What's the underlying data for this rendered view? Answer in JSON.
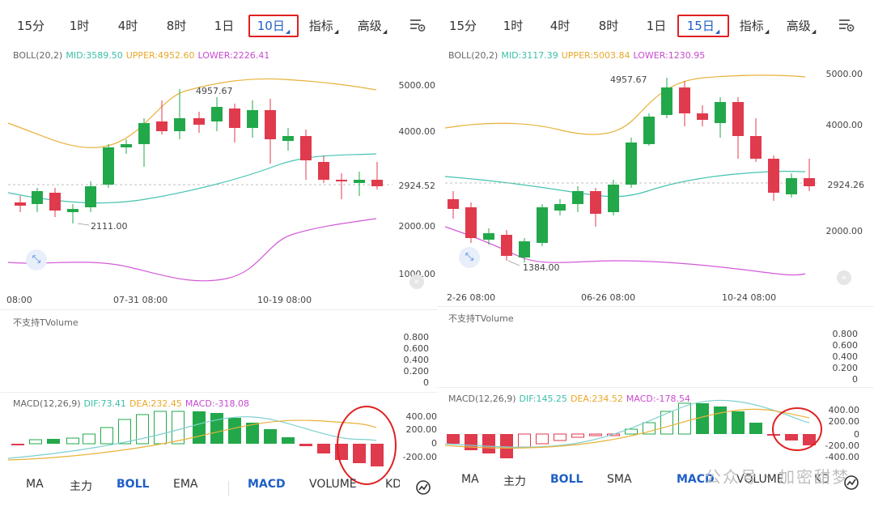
{
  "left": {
    "tabs": [
      {
        "label": "15分",
        "active": false
      },
      {
        "label": "1时",
        "active": false
      },
      {
        "label": "4时",
        "active": false
      },
      {
        "label": "8时",
        "active": false
      },
      {
        "label": "1日",
        "active": false
      },
      {
        "label": "10日",
        "active": true
      },
      {
        "label": "指标",
        "active": false,
        "dropdown": true
      },
      {
        "label": "高级",
        "active": false,
        "dropdown": true
      }
    ],
    "boll": {
      "name": "BOLL(20,2)",
      "mid": "MID:3589.50",
      "upper": "UPPER:4952.60",
      "lower": "LOWER:2226.41"
    },
    "price_axis": [
      "5000.00",
      "4000.00",
      "2000.00",
      "1000.00"
    ],
    "current_price": "2924.52",
    "high_label": "4957.67",
    "low_label": "2111.00",
    "time_axis": [
      "08:00",
      "07-31 08:00",
      "10-19 08:00"
    ],
    "volume_note": "不支持TVolume",
    "volume_axis": [
      "0.800",
      "0.600",
      "0.400",
      "0.200",
      "0"
    ],
    "macd": {
      "name": "MACD(12,26,9)",
      "dif": "DIF:73.41",
      "dea": "DEA:232.45",
      "macd": "MACD:-318.08"
    },
    "macd_axis": [
      "400.00",
      "200.00",
      "0",
      "-200.00"
    ],
    "bottom_tabs": [
      "MA",
      "主力",
      "BOLL",
      "EMA",
      "MACD",
      "VOLUME",
      "KD"
    ]
  },
  "right": {
    "tabs": [
      {
        "label": "15分",
        "active": false
      },
      {
        "label": "1时",
        "active": false
      },
      {
        "label": "4时",
        "active": false
      },
      {
        "label": "8时",
        "active": false
      },
      {
        "label": "1日",
        "active": false
      },
      {
        "label": "15日",
        "active": true
      },
      {
        "label": "指标",
        "active": false,
        "dropdown": true
      },
      {
        "label": "高级",
        "active": false,
        "dropdown": true
      }
    ],
    "boll": {
      "name": "BOLL(20,2)",
      "mid": "MID:3117.39",
      "upper": "UPPER:5003.84",
      "lower": "LOWER:1230.95"
    },
    "price_axis": [
      "5000.00",
      "4000.00",
      "2000.00"
    ],
    "current_price": "2924.26",
    "high_label": "4957.67",
    "low_label": "1384.00",
    "time_axis": [
      "2-26 08:00",
      "06-26 08:00",
      "10-24 08:00"
    ],
    "volume_note": "不支持TVolume",
    "volume_axis": [
      "0.800",
      "0.600",
      "0.400",
      "0.200",
      "0"
    ],
    "macd": {
      "name": "MACD(12,26,9)",
      "dif": "DIF:145.25",
      "dea": "DEA:234.52",
      "macd": "MACD:-178.54"
    },
    "macd_axis": [
      "400.00",
      "200.00",
      "0",
      "-200.00",
      "-400.00"
    ],
    "bottom_tabs": [
      "MA",
      "主力",
      "BOLL",
      "SMA",
      "MACD",
      "VOLUME",
      "KD"
    ]
  },
  "watermark": "公众号 · 加密甜梦",
  "colors": {
    "up": "#22a84a",
    "down": "#e03a4d",
    "upper": "#e8b23a",
    "mid": "#46c3b0",
    "lower": "#d25ad8",
    "dif": "#7fd0cf",
    "dea": "#e8b23a",
    "accent": "#1f5fc7",
    "highlight": "#e02020"
  }
}
